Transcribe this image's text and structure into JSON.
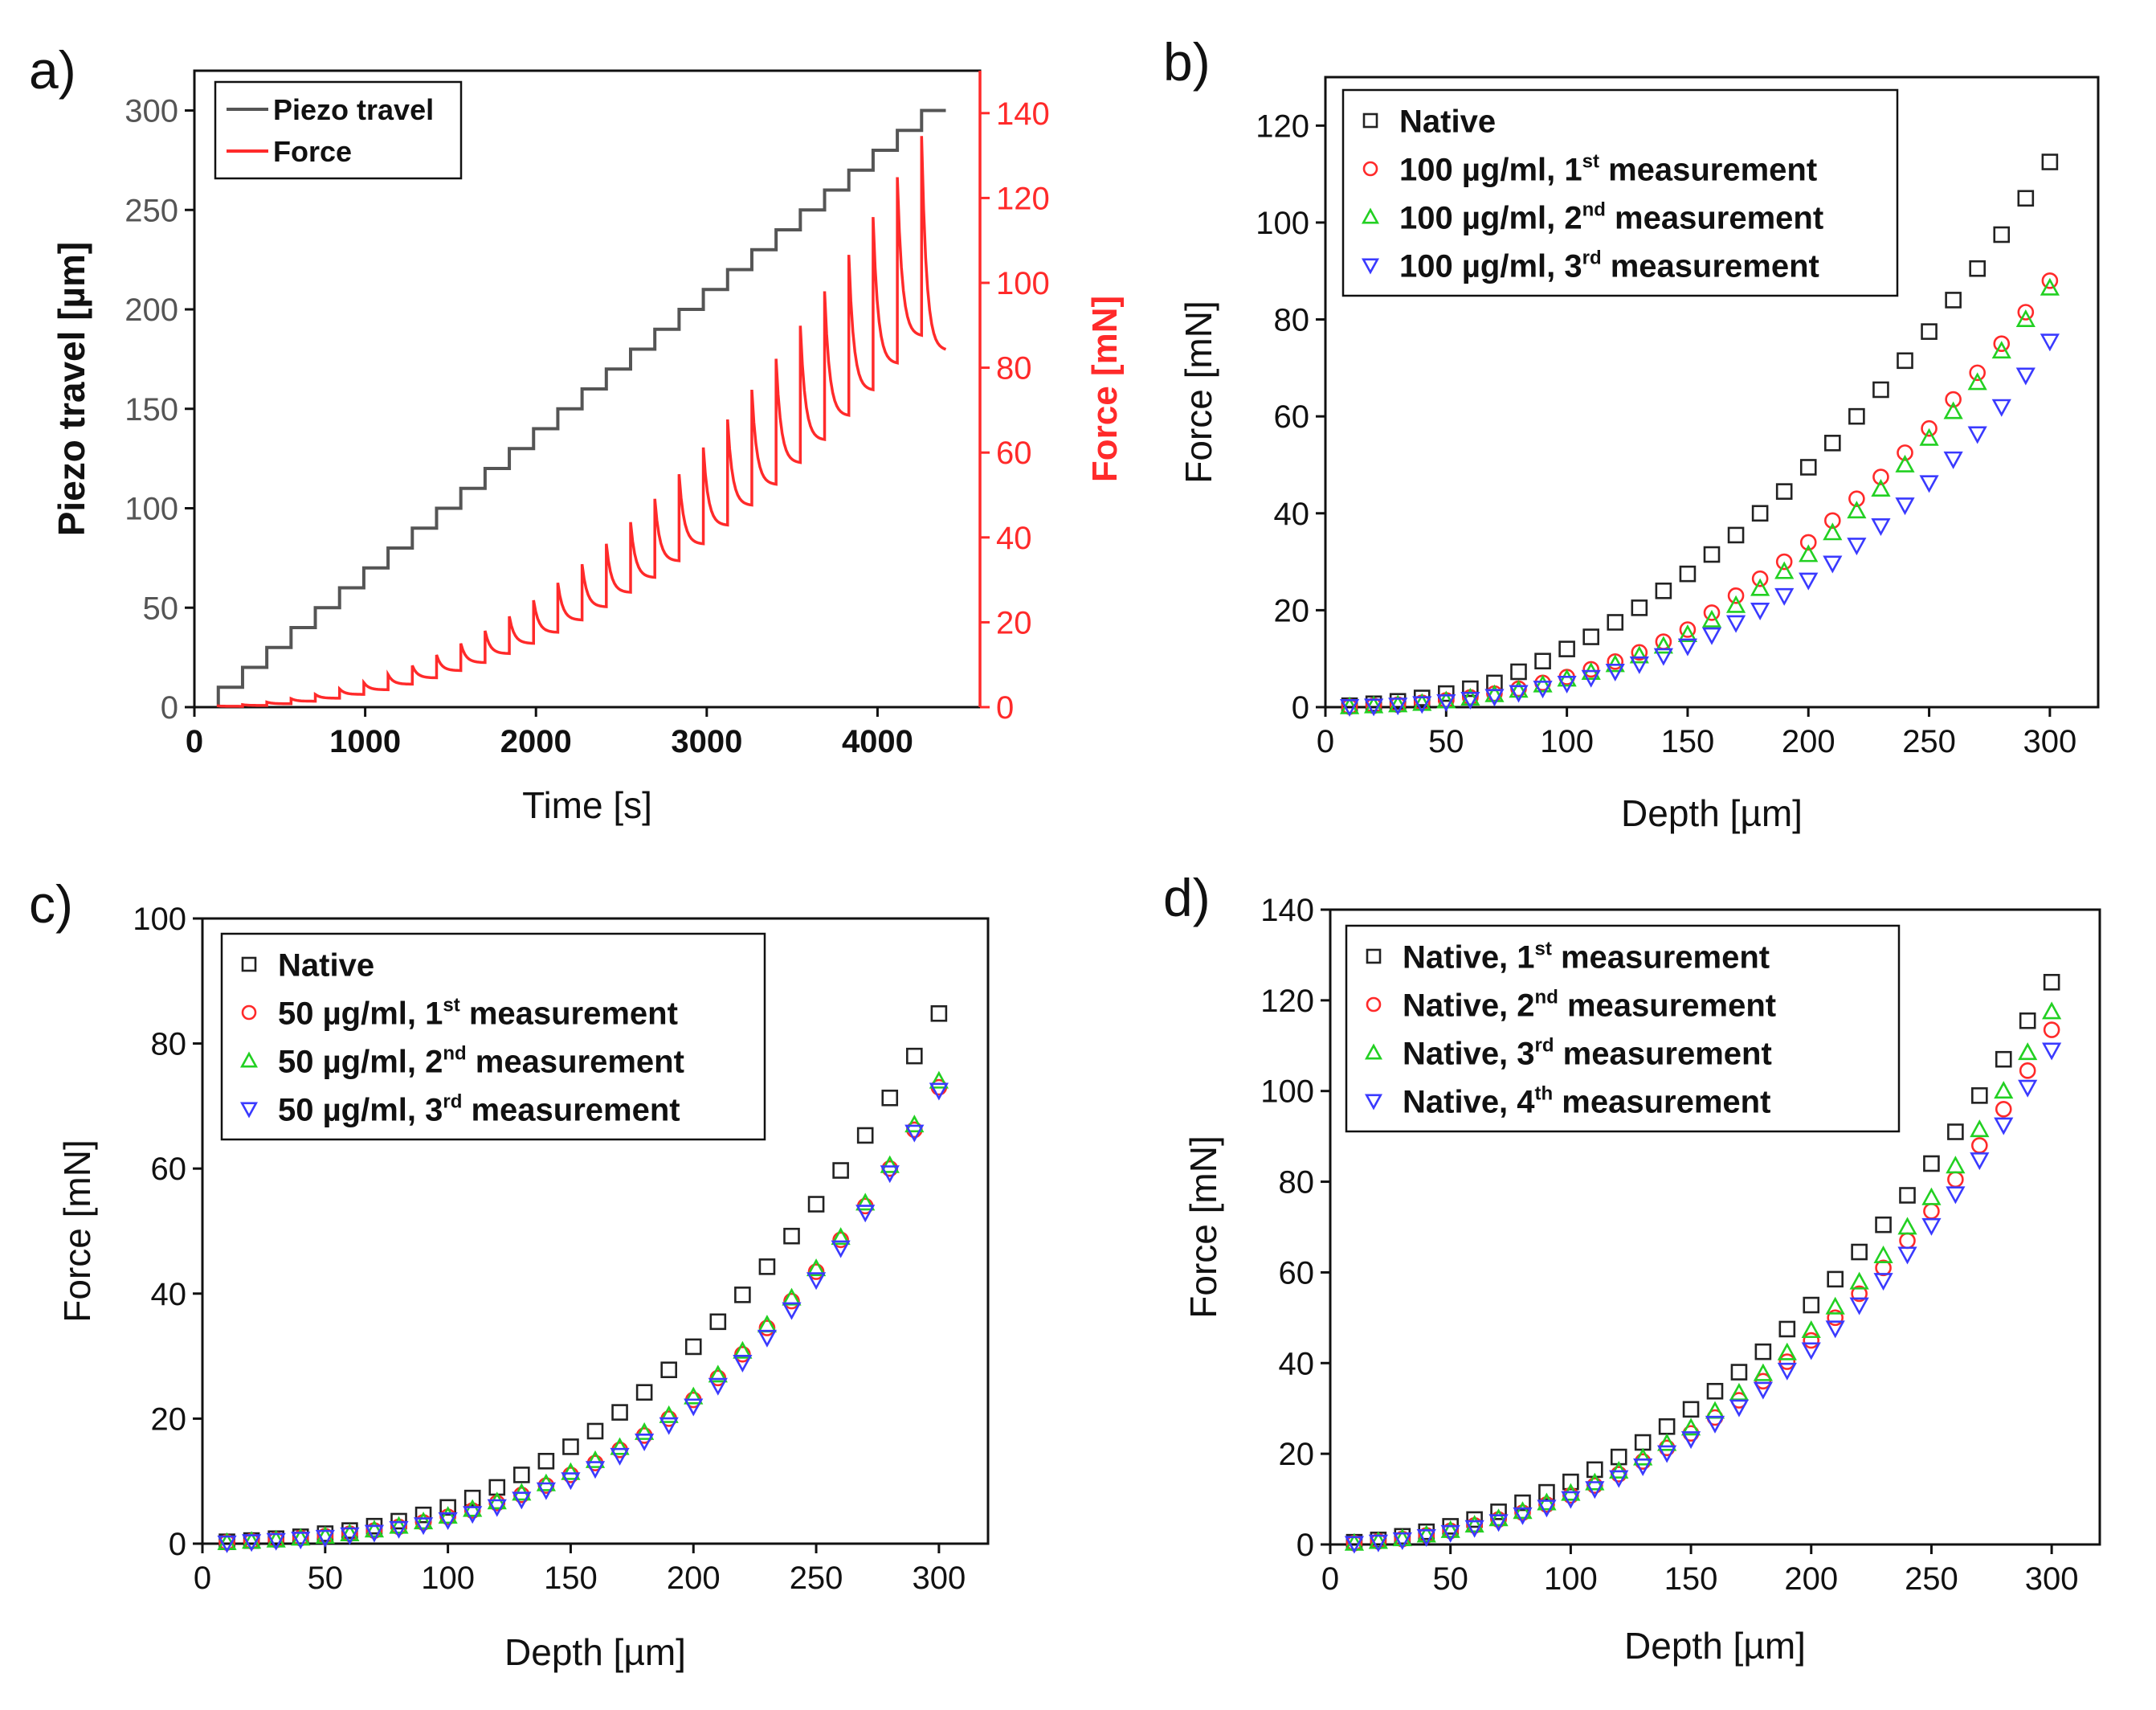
{
  "chart_data": [
    {
      "id": "a",
      "type": "line",
      "panel_label": "a)",
      "xlabel": "Time [s]",
      "ylabel": "Piezo travel [µm]",
      "y2label": "Force [mN]",
      "xlim": [
        0,
        4600
      ],
      "ylim": [
        0,
        320
      ],
      "y2lim": [
        0,
        150
      ],
      "xticks": [
        0,
        1000,
        2000,
        3000,
        4000
      ],
      "yticks": [
        0,
        50,
        100,
        150,
        200,
        250,
        300
      ],
      "y2ticks": [
        0,
        20,
        40,
        60,
        80,
        100,
        120,
        140
      ],
      "legend_position": "top-left",
      "colors": {
        "piezo": "#555555",
        "force": "#ff2a2a",
        "axis_right": "#ff2a2a"
      },
      "series": [
        {
          "name": "Piezo travel",
          "axis": "left",
          "step": {
            "start_time": 140,
            "time_step": 142,
            "start_value": 0,
            "value_step": 10,
            "steps": 30,
            "end_time": 4400
          }
        },
        {
          "name": "Force",
          "axis": "right",
          "peaks": [
            0.3,
            0.6,
            1.2,
            2.0,
            3.0,
            4.3,
            5.8,
            7.7,
            9.8,
            12.3,
            15.0,
            18.0,
            21.4,
            25.2,
            29.3,
            33.7,
            38.5,
            43.6,
            49.1,
            54.9,
            61.2,
            67.8,
            74.8,
            82.1,
            89.9,
            98.0,
            106.6,
            115.5,
            124.9,
            134.6
          ],
          "plateaus": [
            0.2,
            0.4,
            0.8,
            1.4,
            2.1,
            3.0,
            4.1,
            5.4,
            6.9,
            8.6,
            10.5,
            12.6,
            15.0,
            17.6,
            20.5,
            23.6,
            27.0,
            30.5,
            34.4,
            38.4,
            42.8,
            47.5,
            52.4,
            57.5,
            62.9,
            68.6,
            74.6,
            80.9,
            87.4,
            84.0
          ]
        }
      ]
    },
    {
      "id": "b",
      "type": "scatter",
      "panel_label": "b)",
      "xlabel": "Depth [µm]",
      "ylabel": "Force [mN]",
      "xlim": [
        0,
        320
      ],
      "ylim": [
        0,
        130
      ],
      "xticks": [
        0,
        50,
        100,
        150,
        200,
        250,
        300
      ],
      "yticks": [
        0,
        20,
        40,
        60,
        80,
        100,
        120
      ],
      "legend_position": "top-left",
      "x": [
        10,
        20,
        30,
        40,
        50,
        60,
        70,
        80,
        90,
        100,
        110,
        120,
        130,
        140,
        150,
        160,
        170,
        180,
        190,
        200,
        210,
        220,
        230,
        240,
        250,
        260,
        270,
        280,
        290,
        300
      ],
      "series": [
        {
          "name": "Native",
          "sup": "",
          "marker": "square",
          "color": "#222222",
          "values": [
            0.3,
            0.7,
            1.2,
            1.9,
            2.8,
            3.8,
            5.0,
            7.3,
            9.5,
            12.0,
            14.5,
            17.5,
            20.5,
            24.0,
            27.5,
            31.5,
            35.5,
            40.0,
            44.5,
            49.5,
            54.5,
            60.0,
            65.5,
            71.5,
            77.5,
            84.0,
            90.5,
            97.5,
            105.0,
            112.5
          ]
        },
        {
          "name": "100 µg/ml, 1",
          "sup": "st",
          "suffix": " measurement",
          "marker": "circle",
          "color": "#ff2a2a",
          "values": [
            0.1,
            0.3,
            0.5,
            0.9,
            1.4,
            2.0,
            2.8,
            3.8,
            5.0,
            6.2,
            7.8,
            9.4,
            11.3,
            13.5,
            16.0,
            19.5,
            23.0,
            26.5,
            30.0,
            34.0,
            38.5,
            43.0,
            47.5,
            52.5,
            57.5,
            63.5,
            69.0,
            75.0,
            81.5,
            88.0
          ]
        },
        {
          "name": "100 µg/ml, 2",
          "sup": "nd",
          "suffix": " measurement",
          "marker": "triangle",
          "color": "#22d022",
          "values": [
            0.1,
            0.3,
            0.5,
            0.8,
            1.3,
            1.9,
            2.6,
            3.5,
            4.6,
            5.8,
            7.2,
            8.8,
            10.6,
            12.6,
            15.0,
            18.0,
            21.0,
            24.5,
            28.0,
            31.5,
            36.0,
            40.5,
            45.0,
            50.0,
            55.5,
            61.0,
            67.0,
            73.5,
            80.0,
            86.5
          ]
        },
        {
          "name": "100 µg/ml, 3",
          "sup": "rd",
          "suffix": " measurement",
          "marker": "triangle-down",
          "color": "#3a3aff",
          "values": [
            0.1,
            0.2,
            0.4,
            0.7,
            1.1,
            1.6,
            2.2,
            3.0,
            3.9,
            4.9,
            6.1,
            7.4,
            8.9,
            10.6,
            12.6,
            14.9,
            17.4,
            20.0,
            23.0,
            26.2,
            29.7,
            33.4,
            37.4,
            41.7,
            46.3,
            51.2,
            56.4,
            62.0,
            68.5,
            75.5
          ]
        }
      ]
    },
    {
      "id": "c",
      "type": "scatter",
      "panel_label": "c)",
      "xlabel": "Depth [µm]",
      "ylabel": "Force [mN]",
      "xlim": [
        0,
        320
      ],
      "ylim": [
        0,
        100
      ],
      "xticks": [
        0,
        50,
        100,
        150,
        200,
        250,
        300
      ],
      "yticks": [
        0,
        20,
        40,
        60,
        80,
        100
      ],
      "legend_position": "top-left",
      "x": [
        10,
        20,
        30,
        40,
        50,
        60,
        70,
        80,
        90,
        100,
        110,
        120,
        130,
        140,
        150,
        160,
        170,
        180,
        190,
        200,
        210,
        220,
        230,
        240,
        250,
        260,
        270,
        280,
        290,
        300
      ],
      "series": [
        {
          "name": "Native",
          "sup": "",
          "marker": "square",
          "color": "#222222",
          "values": [
            0.3,
            0.5,
            0.8,
            1.1,
            1.6,
            2.1,
            2.8,
            3.6,
            4.6,
            5.8,
            7.3,
            9.0,
            11.0,
            13.2,
            15.5,
            18.0,
            21.0,
            24.2,
            27.8,
            31.5,
            35.5,
            39.8,
            44.3,
            49.2,
            54.3,
            59.7,
            65.3,
            71.3,
            78.0,
            84.8
          ]
        },
        {
          "name": "50 µg/ml, 1",
          "sup": "st",
          "suffix": " measurement",
          "marker": "circle",
          "color": "#ff2a2a",
          "values": [
            0.2,
            0.4,
            0.6,
            0.9,
            1.2,
            1.6,
            2.1,
            2.7,
            3.4,
            4.3,
            5.3,
            6.5,
            7.8,
            9.3,
            11.0,
            12.9,
            15.0,
            17.3,
            20.0,
            23.0,
            26.5,
            30.3,
            34.5,
            38.8,
            43.5,
            48.6,
            54.0,
            60.0,
            66.2,
            73.0
          ]
        },
        {
          "name": "50 µg/ml, 2",
          "sup": "nd",
          "suffix": " measurement",
          "marker": "triangle",
          "color": "#22d022",
          "values": [
            0.2,
            0.4,
            0.6,
            0.9,
            1.2,
            1.6,
            2.2,
            2.8,
            3.5,
            4.4,
            5.5,
            6.7,
            8.1,
            9.6,
            11.4,
            13.3,
            15.4,
            17.8,
            20.5,
            23.5,
            27.0,
            30.8,
            35.0,
            39.3,
            44.0,
            49.0,
            54.5,
            60.5,
            67.0,
            74.0
          ]
        },
        {
          "name": "50 µg/ml, 3",
          "sup": "rd",
          "suffix": " measurement",
          "marker": "triangle-down",
          "color": "#3a3aff",
          "values": [
            0.1,
            0.3,
            0.5,
            0.7,
            1.0,
            1.4,
            1.8,
            2.4,
            3.0,
            3.8,
            4.8,
            5.9,
            7.1,
            8.6,
            10.2,
            12.0,
            14.1,
            16.4,
            19.0,
            22.0,
            25.3,
            29.0,
            33.0,
            37.4,
            42.2,
            47.3,
            53.0,
            59.3,
            65.8,
            72.5
          ]
        }
      ]
    },
    {
      "id": "d",
      "type": "scatter",
      "panel_label": "d)",
      "xlabel": "Depth [µm]",
      "ylabel": "Force [mN]",
      "xlim": [
        0,
        320
      ],
      "ylim": [
        0,
        140
      ],
      "xticks": [
        0,
        50,
        100,
        150,
        200,
        250,
        300
      ],
      "yticks": [
        0,
        20,
        40,
        60,
        80,
        100,
        120,
        140
      ],
      "legend_position": "top-left",
      "x": [
        10,
        20,
        30,
        40,
        50,
        60,
        70,
        80,
        90,
        100,
        110,
        120,
        130,
        140,
        150,
        160,
        170,
        180,
        190,
        200,
        210,
        220,
        230,
        240,
        250,
        260,
        270,
        280,
        290,
        300
      ],
      "series": [
        {
          "name": "Native, 1",
          "sup": "st",
          "suffix": " measurement",
          "marker": "square",
          "color": "#222222",
          "values": [
            0.5,
            1.0,
            1.8,
            2.8,
            4.0,
            5.5,
            7.2,
            9.2,
            11.5,
            13.8,
            16.5,
            19.3,
            22.5,
            26.0,
            29.8,
            33.8,
            38.0,
            42.5,
            47.5,
            52.8,
            58.5,
            64.5,
            70.5,
            77.0,
            84.0,
            91.0,
            99.0,
            107.0,
            115.5,
            124.0
          ]
        },
        {
          "name": "Native, 2",
          "sup": "nd",
          "suffix": " measurement",
          "marker": "circle",
          "color": "#ff2a2a",
          "values": [
            0.3,
            0.7,
            1.2,
            2.0,
            3.0,
            4.2,
            5.5,
            7.0,
            8.8,
            10.8,
            13.0,
            15.5,
            18.3,
            21.3,
            24.5,
            28.0,
            31.8,
            36.0,
            40.3,
            45.0,
            50.0,
            55.3,
            61.0,
            67.0,
            73.5,
            80.5,
            88.0,
            96.0,
            104.5,
            113.5
          ]
        },
        {
          "name": "Native, 3",
          "sup": "rd",
          "suffix": " measurement",
          "marker": "triangle",
          "color": "#22d022",
          "values": [
            0.3,
            0.7,
            1.3,
            2.1,
            3.1,
            4.3,
            5.7,
            7.3,
            9.2,
            11.3,
            13.6,
            16.2,
            19.1,
            22.3,
            25.7,
            29.4,
            33.4,
            37.7,
            42.3,
            47.2,
            52.4,
            57.9,
            63.7,
            70.0,
            76.5,
            83.5,
            91.5,
            100.0,
            108.5,
            117.5
          ]
        },
        {
          "name": "Native, 4",
          "sup": "th",
          "suffix": " measurement",
          "marker": "triangle-down",
          "color": "#3a3aff",
          "values": [
            0.2,
            0.5,
            1.0,
            1.7,
            2.6,
            3.7,
            5.0,
            6.5,
            8.2,
            10.1,
            12.3,
            14.7,
            17.3,
            20.2,
            23.3,
            26.7,
            30.3,
            34.2,
            38.4,
            42.9,
            47.7,
            52.8,
            58.2,
            64.0,
            70.3,
            77.3,
            84.8,
            92.5,
            100.8,
            109.0
          ]
        }
      ]
    }
  ]
}
